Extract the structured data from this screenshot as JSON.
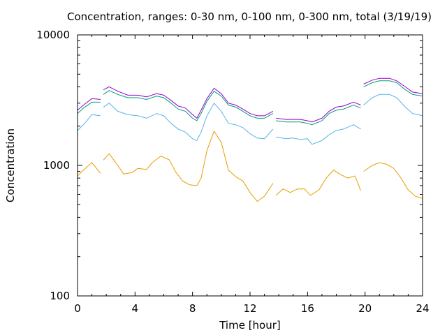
{
  "chart_data": {
    "type": "line",
    "title": "Concentration, ranges: 0-30 nm, 0-100 nm, 0-300 nm, total (3/19/19)",
    "xlabel": "Time [hour]",
    "ylabel": "Concentration",
    "x_ticks": [
      "0",
      "4",
      "8",
      "12",
      "16",
      "20",
      "24"
    ],
    "y_ticks": [
      "100",
      "1000",
      "10000"
    ],
    "xlim": [
      0,
      24
    ],
    "ylim": [
      100,
      10000
    ],
    "y_scale": "log",
    "grid": false,
    "legend": "none",
    "series": [
      {
        "color": "#e69f00",
        "segments": [
          [
            [
              0.0,
              830
            ],
            [
              0.5,
              940
            ],
            [
              1.0,
              1050
            ],
            [
              1.6,
              870
            ]
          ],
          [
            [
              1.8,
              1100
            ],
            [
              2.2,
              1230
            ],
            [
              2.8,
              1000
            ],
            [
              3.2,
              860
            ],
            [
              3.8,
              880
            ],
            [
              4.2,
              950
            ],
            [
              4.8,
              930
            ],
            [
              5.2,
              1050
            ],
            [
              5.8,
              1180
            ],
            [
              6.4,
              1100
            ],
            [
              6.8,
              900
            ],
            [
              7.3,
              760
            ],
            [
              7.8,
              710
            ],
            [
              8.3,
              700
            ],
            [
              8.6,
              800
            ],
            [
              9.0,
              1300
            ],
            [
              9.5,
              1830
            ],
            [
              10.0,
              1500
            ],
            [
              10.5,
              920
            ],
            [
              11.0,
              820
            ],
            [
              11.5,
              760
            ],
            [
              12.0,
              620
            ],
            [
              12.5,
              530
            ],
            [
              13.0,
              580
            ],
            [
              13.6,
              730
            ]
          ],
          [
            [
              13.8,
              590
            ],
            [
              14.3,
              660
            ],
            [
              14.8,
              620
            ],
            [
              15.3,
              660
            ],
            [
              15.8,
              660
            ],
            [
              16.2,
              590
            ],
            [
              16.8,
              650
            ],
            [
              17.3,
              800
            ],
            [
              17.8,
              920
            ],
            [
              18.3,
              850
            ],
            [
              18.8,
              800
            ],
            [
              19.3,
              830
            ],
            [
              19.7,
              640
            ]
          ],
          [
            [
              19.9,
              900
            ],
            [
              20.5,
              1000
            ],
            [
              21.0,
              1050
            ],
            [
              21.5,
              1020
            ],
            [
              22.0,
              950
            ],
            [
              22.5,
              800
            ],
            [
              23.0,
              650
            ],
            [
              23.5,
              580
            ],
            [
              24.0,
              560
            ]
          ]
        ]
      },
      {
        "color": "#56b4e9",
        "segments": [
          [
            [
              0.0,
              1850
            ],
            [
              0.5,
              2100
            ],
            [
              1.0,
              2450
            ],
            [
              1.6,
              2400
            ]
          ],
          [
            [
              1.8,
              2800
            ],
            [
              2.2,
              3000
            ],
            [
              2.8,
              2600
            ],
            [
              3.5,
              2450
            ],
            [
              4.2,
              2400
            ],
            [
              4.8,
              2300
            ],
            [
              5.5,
              2500
            ],
            [
              6.0,
              2400
            ],
            [
              6.5,
              2100
            ],
            [
              7.0,
              1900
            ],
            [
              7.5,
              1800
            ],
            [
              8.0,
              1600
            ],
            [
              8.3,
              1550
            ],
            [
              8.6,
              1800
            ],
            [
              9.0,
              2400
            ],
            [
              9.5,
              3000
            ],
            [
              10.0,
              2600
            ],
            [
              10.5,
              2100
            ],
            [
              11.0,
              2050
            ],
            [
              11.5,
              1950
            ],
            [
              12.0,
              1750
            ],
            [
              12.5,
              1620
            ],
            [
              13.0,
              1600
            ],
            [
              13.6,
              1900
            ]
          ],
          [
            [
              13.8,
              1650
            ],
            [
              14.5,
              1600
            ],
            [
              15.0,
              1620
            ],
            [
              15.5,
              1580
            ],
            [
              16.0,
              1600
            ],
            [
              16.3,
              1450
            ],
            [
              17.0,
              1550
            ],
            [
              17.5,
              1720
            ],
            [
              18.0,
              1850
            ],
            [
              18.5,
              1900
            ],
            [
              19.2,
              2050
            ],
            [
              19.7,
              1900
            ]
          ],
          [
            [
              19.9,
              2900
            ],
            [
              20.5,
              3300
            ],
            [
              21.0,
              3500
            ],
            [
              21.7,
              3500
            ],
            [
              22.2,
              3300
            ],
            [
              22.8,
              2800
            ],
            [
              23.3,
              2500
            ],
            [
              24.0,
              2400
            ]
          ]
        ]
      },
      {
        "color": "#009e73",
        "segments": [
          [
            [
              0.0,
              2500
            ],
            [
              0.5,
              2800
            ],
            [
              1.0,
              3050
            ],
            [
              1.6,
              3050
            ]
          ],
          [
            [
              1.8,
              3500
            ],
            [
              2.2,
              3750
            ],
            [
              2.8,
              3500
            ],
            [
              3.5,
              3300
            ],
            [
              4.2,
              3300
            ],
            [
              4.8,
              3200
            ],
            [
              5.5,
              3400
            ],
            [
              6.0,
              3300
            ],
            [
              6.5,
              3000
            ],
            [
              7.0,
              2700
            ],
            [
              7.5,
              2600
            ],
            [
              8.0,
              2300
            ],
            [
              8.3,
              2200
            ],
            [
              8.6,
              2500
            ],
            [
              9.0,
              3100
            ],
            [
              9.5,
              3700
            ],
            [
              10.0,
              3400
            ],
            [
              10.5,
              2900
            ],
            [
              11.0,
              2800
            ],
            [
              11.5,
              2600
            ],
            [
              12.0,
              2400
            ],
            [
              12.5,
              2300
            ],
            [
              13.0,
              2300
            ],
            [
              13.6,
              2500
            ]
          ],
          [
            [
              13.8,
              2200
            ],
            [
              14.5,
              2150
            ],
            [
              15.0,
              2150
            ],
            [
              15.5,
              2150
            ],
            [
              16.0,
              2100
            ],
            [
              16.3,
              2050
            ],
            [
              17.0,
              2200
            ],
            [
              17.5,
              2500
            ],
            [
              18.0,
              2650
            ],
            [
              18.5,
              2700
            ],
            [
              19.2,
              2900
            ],
            [
              19.7,
              2750
            ]
          ],
          [
            [
              19.9,
              4000
            ],
            [
              20.5,
              4300
            ],
            [
              21.0,
              4450
            ],
            [
              21.7,
              4450
            ],
            [
              22.2,
              4300
            ],
            [
              22.8,
              3800
            ],
            [
              23.3,
              3500
            ],
            [
              24.0,
              3400
            ]
          ]
        ]
      },
      {
        "color": "#9400d3",
        "segments": [
          [
            [
              0.0,
              2650
            ],
            [
              0.5,
              2950
            ],
            [
              1.0,
              3250
            ],
            [
              1.6,
              3200
            ]
          ],
          [
            [
              1.8,
              3800
            ],
            [
              2.2,
              4000
            ],
            [
              2.8,
              3700
            ],
            [
              3.5,
              3450
            ],
            [
              4.2,
              3450
            ],
            [
              4.8,
              3350
            ],
            [
              5.5,
              3550
            ],
            [
              6.0,
              3450
            ],
            [
              6.5,
              3150
            ],
            [
              7.0,
              2850
            ],
            [
              7.5,
              2750
            ],
            [
              8.0,
              2450
            ],
            [
              8.3,
              2300
            ],
            [
              8.6,
              2650
            ],
            [
              9.0,
              3250
            ],
            [
              9.5,
              3900
            ],
            [
              10.0,
              3550
            ],
            [
              10.5,
              3000
            ],
            [
              11.0,
              2900
            ],
            [
              11.5,
              2700
            ],
            [
              12.0,
              2500
            ],
            [
              12.5,
              2400
            ],
            [
              13.0,
              2400
            ],
            [
              13.6,
              2600
            ]
          ],
          [
            [
              13.8,
              2300
            ],
            [
              14.5,
              2250
            ],
            [
              15.0,
              2250
            ],
            [
              15.5,
              2250
            ],
            [
              16.0,
              2200
            ],
            [
              16.3,
              2150
            ],
            [
              17.0,
              2300
            ],
            [
              17.5,
              2600
            ],
            [
              18.0,
              2800
            ],
            [
              18.5,
              2850
            ],
            [
              19.2,
              3050
            ],
            [
              19.7,
              2900
            ]
          ],
          [
            [
              19.9,
              4200
            ],
            [
              20.5,
              4500
            ],
            [
              21.0,
              4650
            ],
            [
              21.7,
              4650
            ],
            [
              22.2,
              4450
            ],
            [
              22.8,
              4000
            ],
            [
              23.3,
              3650
            ],
            [
              24.0,
              3550
            ]
          ]
        ]
      }
    ]
  }
}
